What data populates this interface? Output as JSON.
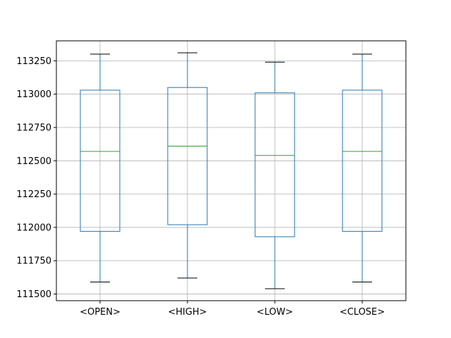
{
  "chart_data": {
    "type": "box",
    "title": "",
    "xlabel": "",
    "ylabel": "",
    "ylim": [
      111450,
      113400
    ],
    "yticks": [
      111500,
      111750,
      112000,
      112250,
      112500,
      112750,
      113000,
      113250
    ],
    "ytick_labels": [
      "111500",
      "111750",
      "112000",
      "112250",
      "112500",
      "112750",
      "113000",
      "113250"
    ],
    "grid": true,
    "categories": [
      "<OPEN>",
      "<HIGH>",
      "<LOW>",
      "<CLOSE>"
    ],
    "boxes": [
      {
        "label": "<OPEN>",
        "whisker_low": 111590,
        "q1": 111970,
        "median": 112570,
        "q3": 113030,
        "whisker_high": 113300
      },
      {
        "label": "<HIGH>",
        "whisker_low": 111620,
        "q1": 112020,
        "median": 112610,
        "q3": 113050,
        "whisker_high": 113310
      },
      {
        "label": "<LOW>",
        "whisker_low": 111540,
        "q1": 111930,
        "median": 112540,
        "q3": 113010,
        "whisker_high": 113240
      },
      {
        "label": "<CLOSE>",
        "whisker_low": 111590,
        "q1": 111970,
        "median": 112570,
        "q3": 113030,
        "whisker_high": 113300
      }
    ],
    "colors": {
      "box": "#1f77b4",
      "median": "#2ca02c",
      "cap": "#000000",
      "grid": "#b0b0b0",
      "axes": "#000000"
    }
  }
}
